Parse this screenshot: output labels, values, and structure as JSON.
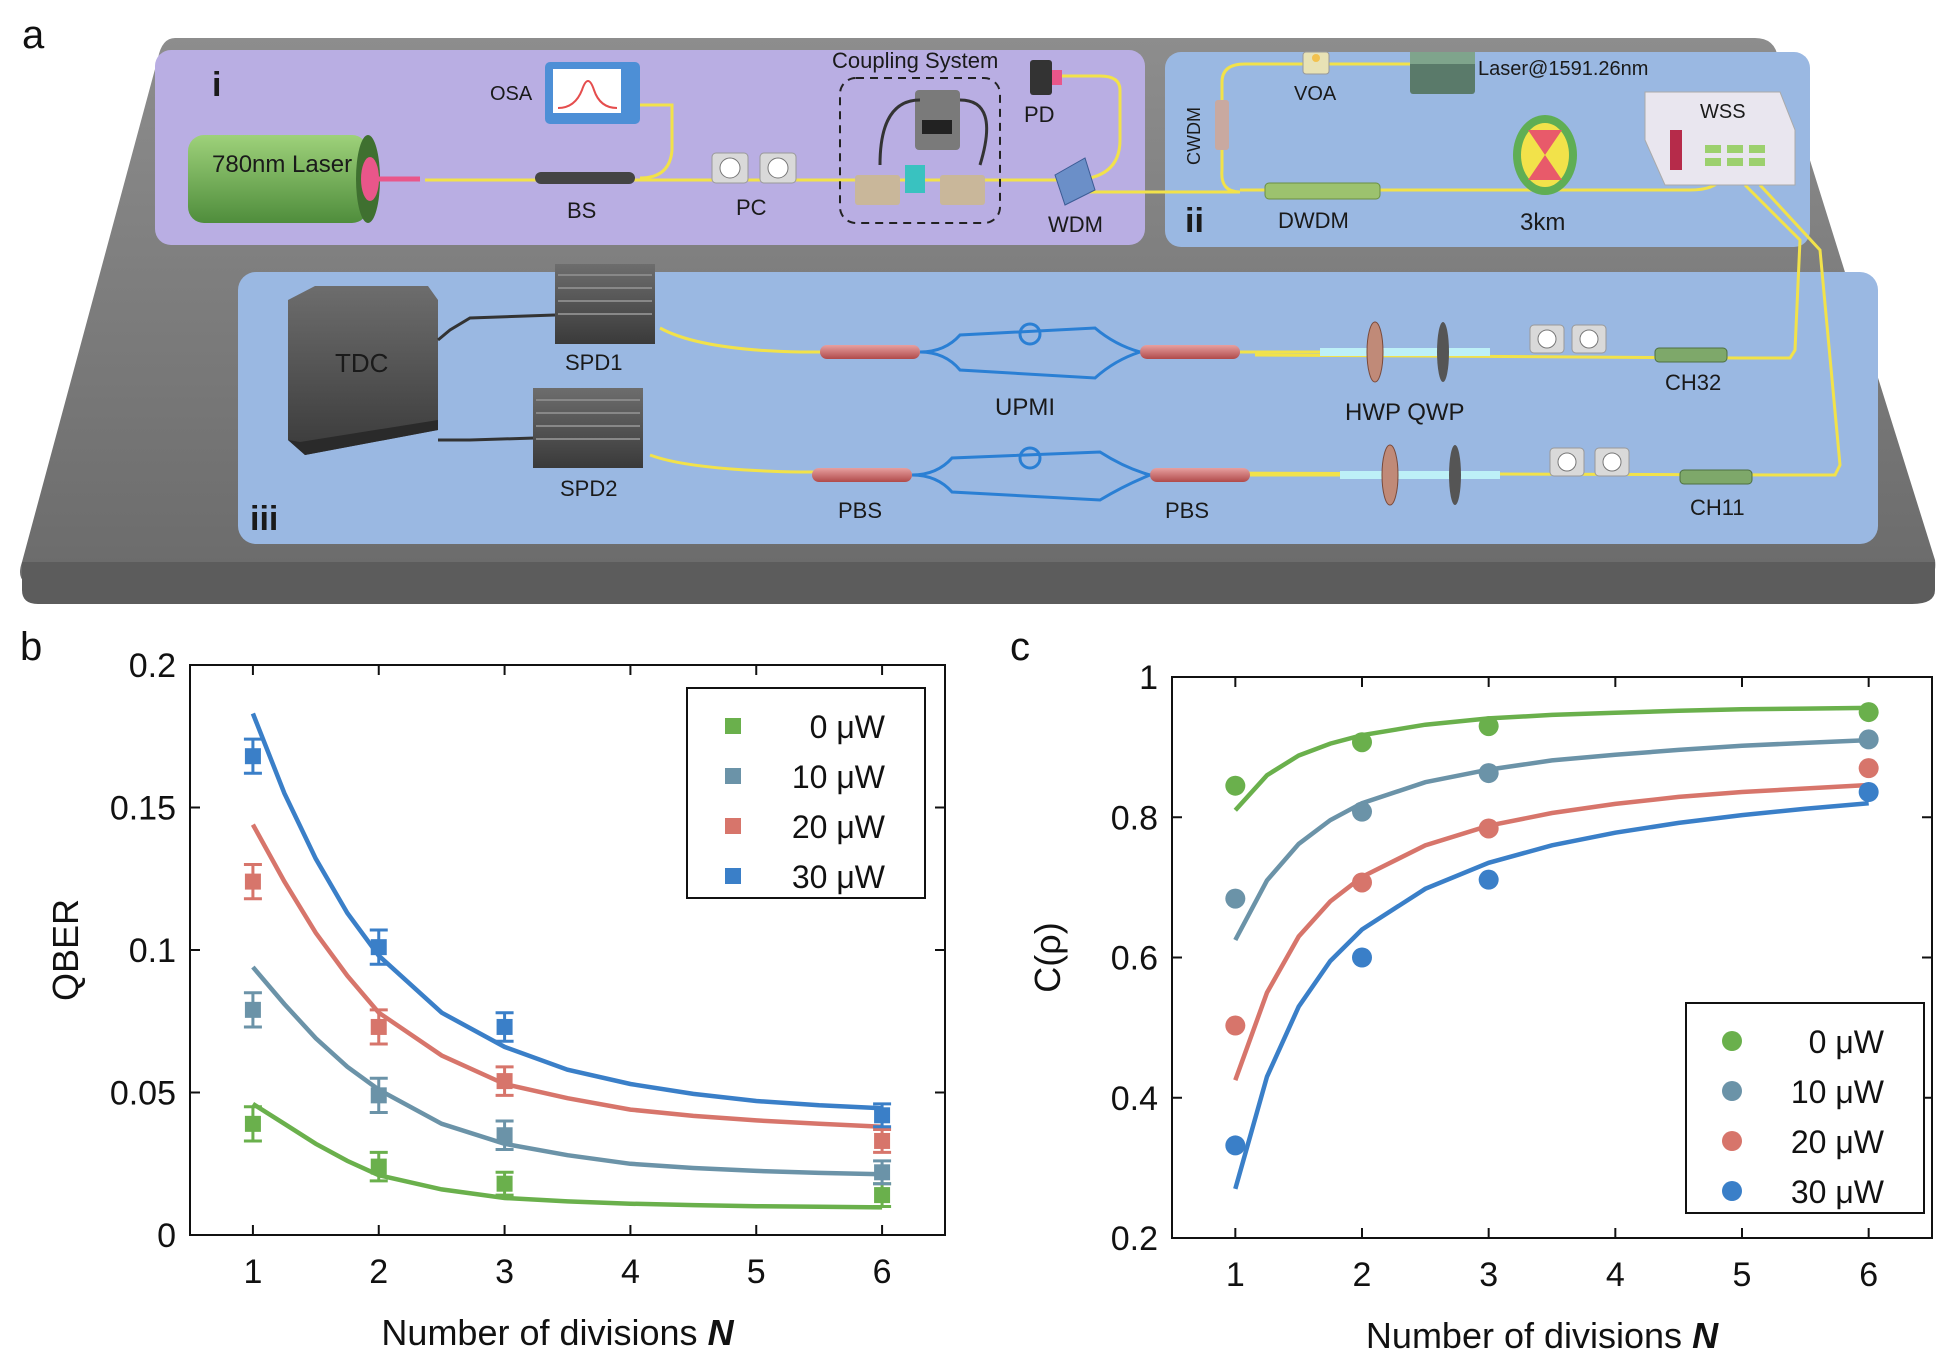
{
  "panel_letters": {
    "a": "a",
    "b": "b",
    "c": "c"
  },
  "setup": {
    "section_labels": {
      "i": "i",
      "ii": "ii",
      "iii": "iii"
    },
    "labels": {
      "laser780": "780nm Laser",
      "osa": "OSA",
      "bs": "BS",
      "pc": "PC",
      "coupling": "Coupling System",
      "pd": "PD",
      "wdm": "WDM",
      "cwdm": "CWDM",
      "voa": "VOA",
      "laser1591": "Laser@1591.26nm",
      "wss": "WSS",
      "dwdm": "DWDM",
      "fiber": "3km",
      "tdc": "TDC",
      "spd1": "SPD1",
      "spd2": "SPD2",
      "upmi": "UPMI",
      "hwp_qwp": "HWP QWP",
      "ch32": "CH32",
      "ch11": "CH11",
      "pbs_left": "PBS",
      "pbs_right": "PBS"
    },
    "colors": {
      "base": "#7a7a7a",
      "purple_panel": "#b9aee3",
      "blue_panel": "#9ab8e2",
      "fiber": "#f2e24a",
      "interferometer": "#2a7fd4"
    }
  },
  "chart_data": [
    {
      "type": "scatter",
      "panel": "b",
      "xlabel": "Number of divisions",
      "xlabel_symbol": "N",
      "ylabel": "QBER",
      "xlim": [
        0.5,
        6.5
      ],
      "ylim": [
        0,
        0.2
      ],
      "xticks": [
        "1",
        "2",
        "3",
        "4",
        "5",
        "6"
      ],
      "yticks": [
        "0",
        "0.05",
        "0.1",
        "0.15",
        "0.2"
      ],
      "marker": "square",
      "error_bars": true,
      "legend_position": "top-right",
      "series": [
        {
          "name": "0 μW",
          "color": "#6ab04c",
          "x": [
            1,
            2,
            3,
            6
          ],
          "y": [
            0.039,
            0.024,
            0.018,
            0.014
          ],
          "err": [
            0.006,
            0.005,
            0.004,
            0.004
          ],
          "fit": {
            "x": [
              1,
              1.25,
              1.5,
              1.75,
              2,
              2.5,
              3,
              3.5,
              4,
              4.5,
              5,
              5.5,
              6
            ],
            "y": [
              0.046,
              0.039,
              0.032,
              0.026,
              0.021,
              0.016,
              0.013,
              0.0118,
              0.011,
              0.0105,
              0.0101,
              0.0099,
              0.0097
            ]
          }
        },
        {
          "name": "10 μW",
          "color": "#6b93a8",
          "x": [
            1,
            2,
            3,
            6
          ],
          "y": [
            0.079,
            0.049,
            0.035,
            0.022
          ],
          "err": [
            0.006,
            0.006,
            0.005,
            0.004
          ],
          "fit": {
            "x": [
              1,
              1.25,
              1.5,
              1.75,
              2,
              2.5,
              3,
              3.5,
              4,
              4.5,
              5,
              5.5,
              6
            ],
            "y": [
              0.094,
              0.081,
              0.069,
              0.059,
              0.051,
              0.039,
              0.032,
              0.028,
              0.025,
              0.0235,
              0.0225,
              0.0218,
              0.0213
            ]
          }
        },
        {
          "name": "20 μW",
          "color": "#d7756b",
          "x": [
            1,
            2,
            3,
            6
          ],
          "y": [
            0.124,
            0.073,
            0.054,
            0.033
          ],
          "err": [
            0.006,
            0.006,
            0.005,
            0.004
          ],
          "fit": {
            "x": [
              1,
              1.25,
              1.5,
              1.75,
              2,
              2.5,
              3,
              3.5,
              4,
              4.5,
              5,
              5.5,
              6
            ],
            "y": [
              0.144,
              0.124,
              0.106,
              0.091,
              0.078,
              0.063,
              0.053,
              0.048,
              0.044,
              0.0418,
              0.0402,
              0.039,
              0.038
            ]
          }
        },
        {
          "name": "30 μW",
          "color": "#3a7fc8",
          "x": [
            1,
            2,
            3,
            6
          ],
          "y": [
            0.168,
            0.101,
            0.073,
            0.042
          ],
          "err": [
            0.006,
            0.006,
            0.005,
            0.004
          ],
          "fit": {
            "x": [
              1,
              1.25,
              1.5,
              1.75,
              2,
              2.5,
              3,
              3.5,
              4,
              4.5,
              5,
              5.5,
              6
            ],
            "y": [
              0.183,
              0.155,
              0.132,
              0.113,
              0.098,
              0.078,
              0.066,
              0.058,
              0.053,
              0.0495,
              0.047,
              0.0455,
              0.0445
            ]
          }
        }
      ]
    },
    {
      "type": "scatter",
      "panel": "c",
      "xlabel": "Number of divisions",
      "xlabel_symbol": "N",
      "ylabel": "C(ρ)",
      "xlim": [
        0.5,
        6.5
      ],
      "ylim": [
        0.2,
        1.0
      ],
      "xticks": [
        "1",
        "2",
        "3",
        "4",
        "5",
        "6"
      ],
      "yticks": [
        "0.2",
        "0.4",
        "0.6",
        "0.8",
        "1"
      ],
      "marker": "circle",
      "legend_position": "bottom-right",
      "series": [
        {
          "name": "0 μW",
          "color": "#6ab04c",
          "x": [
            1,
            2,
            3,
            6
          ],
          "y": [
            0.845,
            0.907,
            0.93,
            0.95
          ],
          "fit": {
            "x": [
              1,
              1.25,
              1.5,
              1.75,
              2,
              2.5,
              3,
              3.5,
              4,
              4.5,
              5,
              5.5,
              6
            ],
            "y": [
              0.81,
              0.86,
              0.888,
              0.905,
              0.917,
              0.932,
              0.941,
              0.946,
              0.949,
              0.952,
              0.954,
              0.955,
              0.956
            ]
          }
        },
        {
          "name": "10 μW",
          "color": "#6b93a8",
          "x": [
            1,
            2,
            3,
            6
          ],
          "y": [
            0.684,
            0.808,
            0.863,
            0.911
          ],
          "fit": {
            "x": [
              1,
              1.25,
              1.5,
              1.75,
              2,
              2.5,
              3,
              3.5,
              4,
              4.5,
              5,
              5.5,
              6
            ],
            "y": [
              0.625,
              0.71,
              0.762,
              0.796,
              0.82,
              0.85,
              0.868,
              0.881,
              0.889,
              0.896,
              0.902,
              0.906,
              0.91
            ]
          }
        },
        {
          "name": "20 μW",
          "color": "#d7756b",
          "x": [
            1,
            2,
            3,
            6
          ],
          "y": [
            0.503,
            0.707,
            0.784,
            0.87
          ],
          "fit": {
            "x": [
              1,
              1.25,
              1.5,
              1.75,
              2,
              2.5,
              3,
              3.5,
              4,
              4.5,
              5,
              5.5,
              6
            ],
            "y": [
              0.425,
              0.55,
              0.63,
              0.68,
              0.715,
              0.76,
              0.788,
              0.806,
              0.819,
              0.829,
              0.836,
              0.841,
              0.846
            ]
          }
        },
        {
          "name": "30 μW",
          "color": "#3a7fc8",
          "x": [
            1,
            2,
            3,
            6
          ],
          "y": [
            0.332,
            0.6,
            0.711,
            0.836
          ],
          "fit": {
            "x": [
              1,
              1.25,
              1.5,
              1.75,
              2,
              2.5,
              3,
              3.5,
              4,
              4.5,
              5,
              5.5,
              6
            ],
            "y": [
              0.27,
              0.43,
              0.53,
              0.595,
              0.64,
              0.698,
              0.735,
              0.76,
              0.778,
              0.792,
              0.803,
              0.812,
              0.82
            ]
          }
        }
      ]
    }
  ]
}
